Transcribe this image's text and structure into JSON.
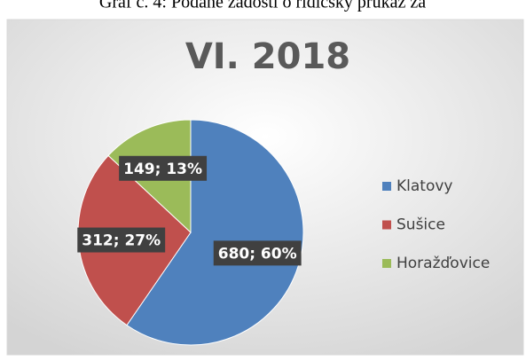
{
  "chart_data": {
    "type": "pie",
    "caption": "Graf č. 4: Podané žádosti o řidičský průkaz za",
    "title": "VI. 2018",
    "categories": [
      "Klatovy",
      "Sušice",
      "Horažďovice"
    ],
    "values": [
      680,
      312,
      149
    ],
    "value_labels": [
      "680; 60%",
      "312; 27%",
      "149; 13%"
    ],
    "colors": [
      "#4f81bd",
      "#c0504d",
      "#9bbb59"
    ],
    "legend": "right"
  }
}
